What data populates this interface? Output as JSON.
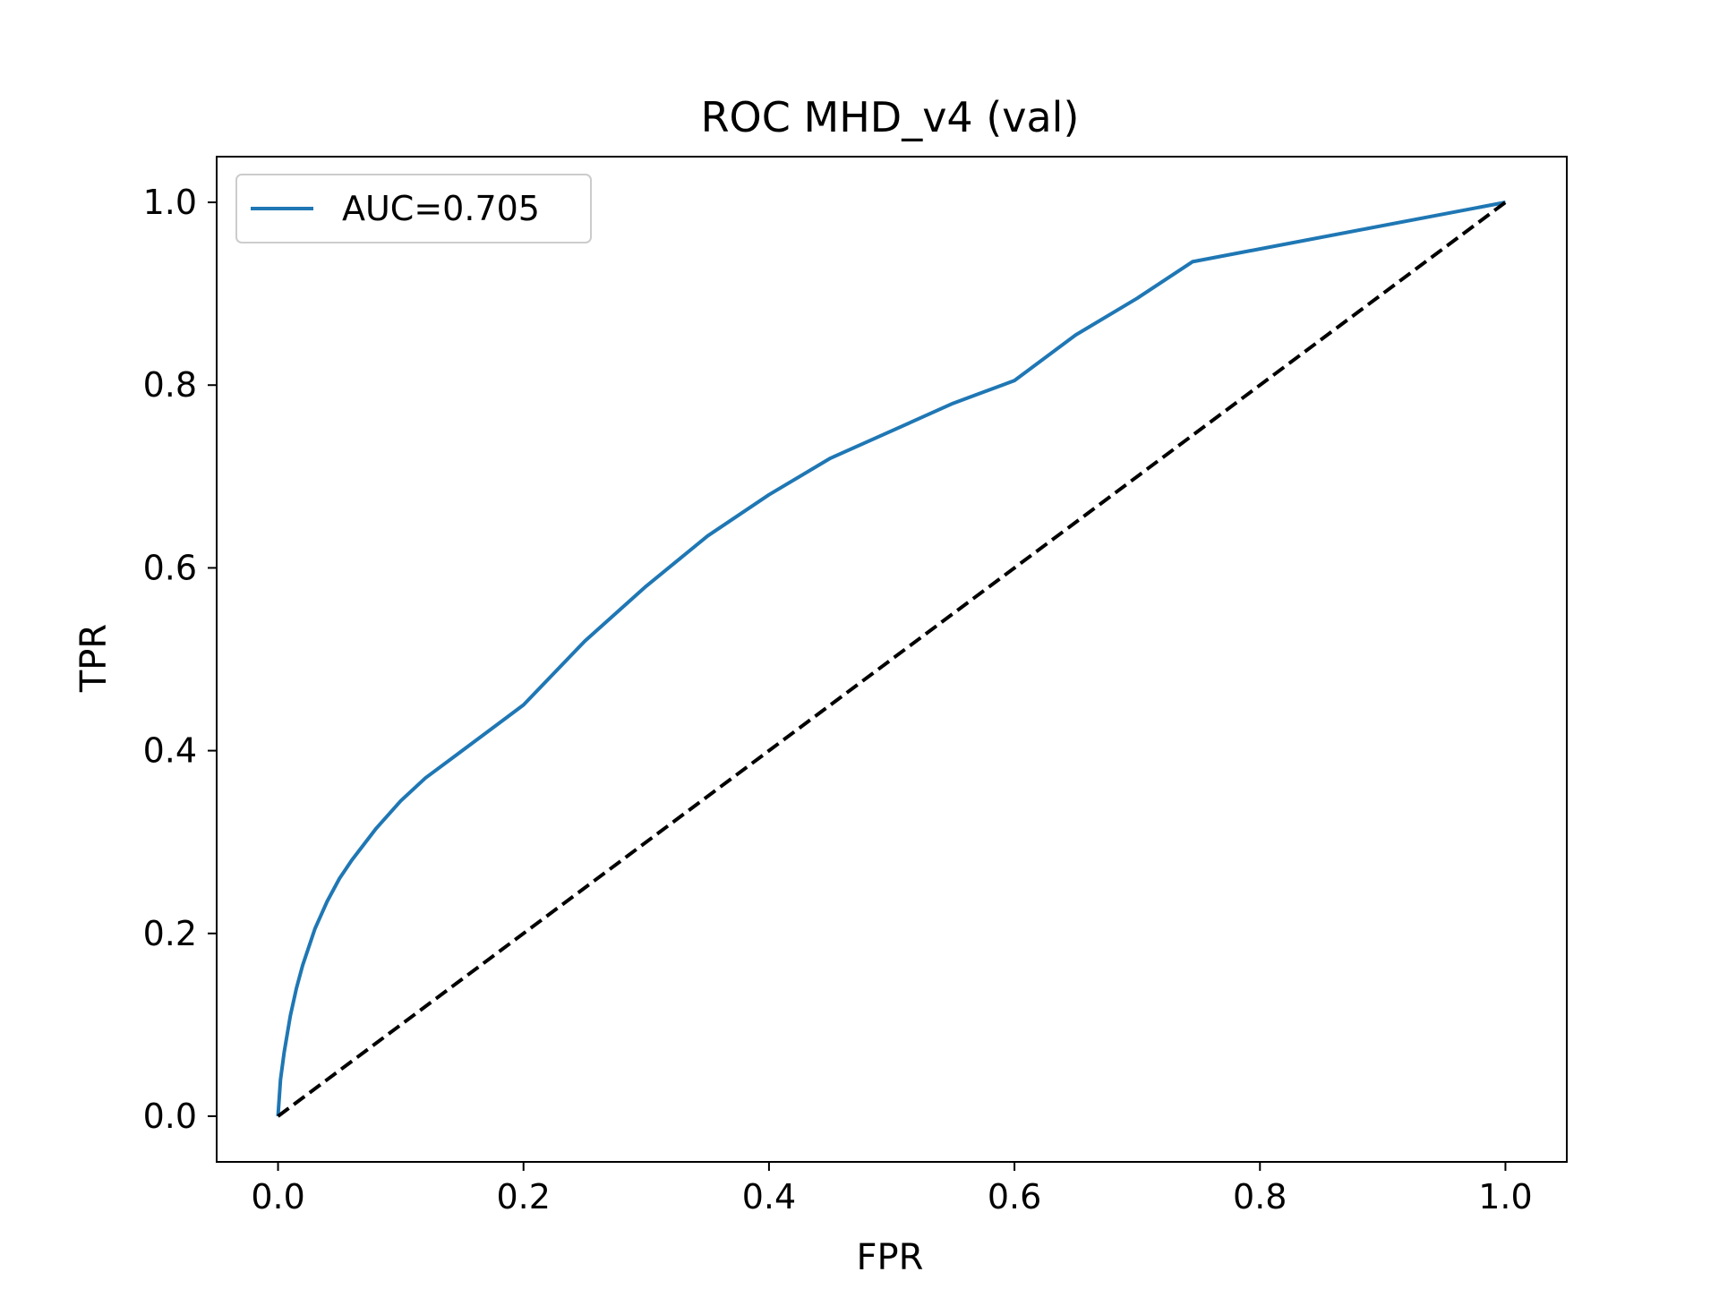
{
  "chart_data": {
    "type": "line",
    "title": "ROC MHD_v4 (val)",
    "xlabel": "FPR",
    "ylabel": "TPR",
    "xlim": [
      -0.05,
      1.05
    ],
    "ylim": [
      -0.05,
      1.05
    ],
    "xticks": [
      0.0,
      0.2,
      0.4,
      0.6,
      0.8,
      1.0
    ],
    "yticks": [
      0.0,
      0.2,
      0.4,
      0.6,
      0.8,
      1.0
    ],
    "xtick_labels": [
      "0.0",
      "0.2",
      "0.4",
      "0.6",
      "0.8",
      "1.0"
    ],
    "ytick_labels": [
      "0.0",
      "0.2",
      "0.4",
      "0.6",
      "0.8",
      "1.0"
    ],
    "grid": false,
    "legend_position": "upper-left",
    "series": [
      {
        "name": "AUC=0.705",
        "color": "#1f77b4",
        "style": "solid",
        "x": [
          0.0,
          0.002,
          0.005,
          0.01,
          0.015,
          0.02,
          0.03,
          0.04,
          0.05,
          0.06,
          0.08,
          0.1,
          0.12,
          0.15,
          0.18,
          0.2,
          0.25,
          0.3,
          0.35,
          0.4,
          0.45,
          0.5,
          0.55,
          0.57,
          0.59,
          0.6,
          0.65,
          0.7,
          0.745,
          1.0
        ],
        "y": [
          0.0,
          0.04,
          0.07,
          0.11,
          0.14,
          0.165,
          0.205,
          0.235,
          0.26,
          0.28,
          0.315,
          0.345,
          0.37,
          0.4,
          0.43,
          0.45,
          0.52,
          0.58,
          0.635,
          0.68,
          0.72,
          0.75,
          0.78,
          0.79,
          0.8,
          0.805,
          0.855,
          0.895,
          0.935,
          1.0
        ]
      },
      {
        "name": "",
        "color": "#000000",
        "style": "dashed",
        "x": [
          0.0,
          1.0
        ],
        "y": [
          0.0,
          1.0
        ]
      }
    ]
  }
}
